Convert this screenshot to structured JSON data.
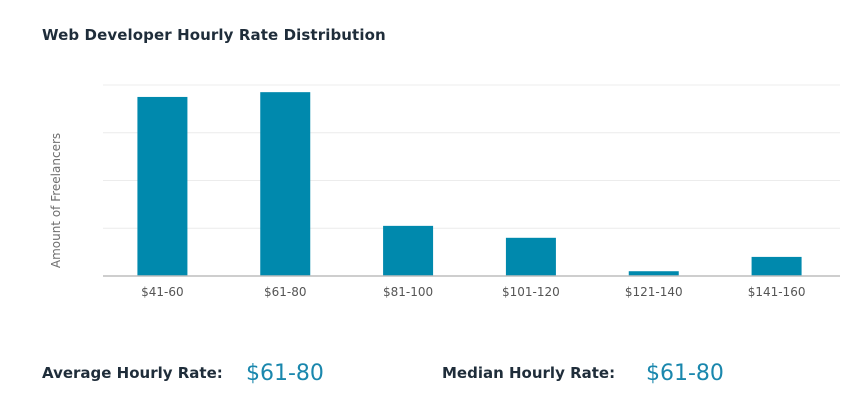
{
  "chart_data": {
    "type": "bar",
    "title": "Web Developer Hourly Rate Distribution",
    "xlabel": "",
    "ylabel": "Amount of Freelancers",
    "categories": [
      "$41-60",
      "$61-80",
      "$81-100",
      "$101-120",
      "$121-140",
      "$141-160"
    ],
    "values": [
      37.5,
      38.5,
      10.5,
      8,
      1,
      4
    ],
    "ylim": [
      0,
      40
    ],
    "y_tick_labels_shown": false,
    "grid": true,
    "bar_color": "#0089ad",
    "grid_color": "#ececec",
    "axis_color": "#bdbdbd"
  },
  "summary": {
    "average_label": "Average Hourly Rate:",
    "average_value": "$61-80",
    "median_label": "Median Hourly Rate:",
    "median_value": "$61-80"
  }
}
